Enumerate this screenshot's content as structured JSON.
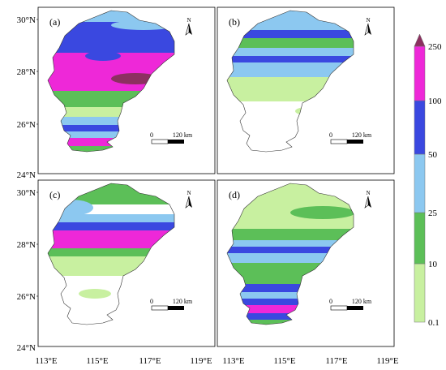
{
  "panels": [
    {
      "label": "(a)"
    },
    {
      "label": "(b)"
    },
    {
      "label": "(c)"
    },
    {
      "label": "(d)"
    }
  ],
  "axes": {
    "lat_ticks": [
      "30°N",
      "28°N",
      "26°N",
      "24°N"
    ],
    "lon_ticks": [
      "113°E",
      "115°E",
      "117°E",
      "119°E"
    ]
  },
  "scalebar": {
    "zero": "0",
    "distance": "120 km"
  },
  "north_arrow": {
    "letter": "N"
  },
  "colorbar": {
    "ticks": [
      "250",
      "100",
      "50",
      "25",
      "10",
      "0.1"
    ],
    "colors": {
      "0.1-10": "#c8f0a0",
      "10-25": "#5cbf58",
      "25-50": "#8cc8f0",
      "50-100": "#3a48e0",
      "100-250": "#ee28d8",
      ">250": "#8c3060"
    }
  }
}
